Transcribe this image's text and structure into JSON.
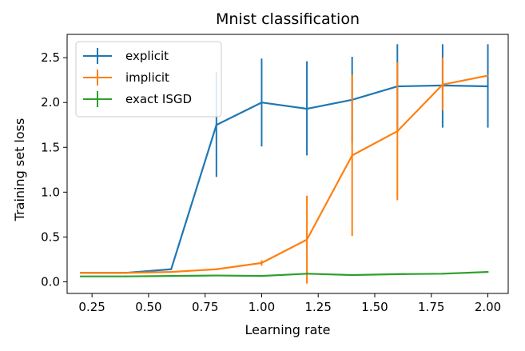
{
  "chart_data": {
    "type": "line",
    "title": "Mnist classification",
    "xlabel": "Learning rate",
    "ylabel": "Training set loss",
    "xlim": [
      0.14,
      2.09
    ],
    "ylim": [
      -0.13,
      2.76
    ],
    "x": [
      0.2,
      0.4,
      0.6,
      0.8,
      1.0,
      1.2,
      1.4,
      1.6,
      1.8,
      2.0
    ],
    "xticks": [
      {
        "value": 0.25,
        "label": "0.25"
      },
      {
        "value": 0.5,
        "label": "0.50"
      },
      {
        "value": 0.75,
        "label": "0.75"
      },
      {
        "value": 1.0,
        "label": "1.00"
      },
      {
        "value": 1.25,
        "label": "1.25"
      },
      {
        "value": 1.5,
        "label": "1.50"
      },
      {
        "value": 1.75,
        "label": "1.75"
      },
      {
        "value": 2.0,
        "label": "2.00"
      }
    ],
    "yticks": [
      {
        "value": 0.0,
        "label": "0.0"
      },
      {
        "value": 0.5,
        "label": "0.5"
      },
      {
        "value": 1.0,
        "label": "1.0"
      },
      {
        "value": 1.5,
        "label": "1.5"
      },
      {
        "value": 2.0,
        "label": "2.0"
      },
      {
        "value": 2.5,
        "label": "2.5"
      }
    ],
    "series": [
      {
        "name": "explicit",
        "color": "#1f77b4",
        "values": [
          0.1,
          0.1,
          0.14,
          1.75,
          2.0,
          1.93,
          2.03,
          2.18,
          2.19,
          2.18
        ],
        "errors": [
          null,
          null,
          null,
          [
            1.17,
            2.34
          ],
          [
            1.51,
            2.49
          ],
          [
            1.41,
            2.46
          ],
          [
            1.55,
            2.51
          ],
          [
            1.71,
            2.65
          ],
          [
            1.72,
            2.65
          ],
          [
            1.72,
            2.65
          ]
        ]
      },
      {
        "name": "implicit",
        "color": "#ff7f0e",
        "values": [
          0.1,
          0.1,
          0.11,
          0.14,
          0.21,
          0.47,
          1.41,
          1.68,
          2.2,
          2.3
        ],
        "errors": [
          null,
          null,
          null,
          null,
          [
            0.18,
            0.24
          ],
          [
            -0.02,
            0.96
          ],
          [
            0.51,
            2.31
          ],
          [
            0.91,
            2.45
          ],
          [
            1.91,
            2.5
          ],
          null
        ]
      },
      {
        "name": "exact ISGD",
        "color": "#2ca02c",
        "values": [
          0.06,
          0.06,
          0.065,
          0.07,
          0.065,
          0.09,
          0.075,
          0.085,
          0.09,
          0.11
        ],
        "errors": [
          null,
          null,
          null,
          null,
          null,
          null,
          null,
          null,
          null,
          null
        ]
      }
    ],
    "legend": "top-left"
  }
}
